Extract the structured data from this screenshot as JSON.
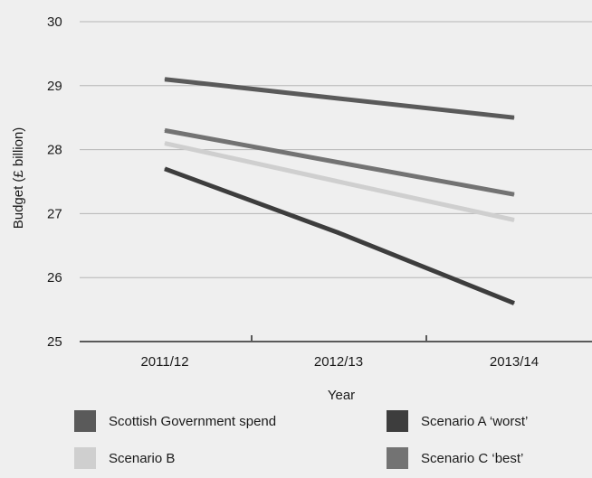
{
  "chart_data": {
    "type": "line",
    "categories": [
      "2011/12",
      "2012/13",
      "2013/14"
    ],
    "xlabel": "Year",
    "ylabel": "Budget (£ billion)",
    "ylim": [
      25,
      30
    ],
    "yticks": [
      25,
      26,
      27,
      28,
      29,
      30
    ],
    "grid": "horizontal",
    "legend_position": "bottom",
    "series": [
      {
        "name": "Scottish Government spend",
        "values": [
          29.1,
          28.8,
          28.5
        ],
        "color": "#5a5a5a"
      },
      {
        "name": "Scenario A ‘worst’",
        "values": [
          27.7,
          26.7,
          25.6
        ],
        "color": "#3d3d3d"
      },
      {
        "name": "Scenario B",
        "values": [
          28.1,
          27.5,
          26.9
        ],
        "color": "#cfcfcf"
      },
      {
        "name": "Scenario C ‘best’",
        "values": [
          28.3,
          27.8,
          27.3
        ],
        "color": "#737373"
      }
    ]
  }
}
